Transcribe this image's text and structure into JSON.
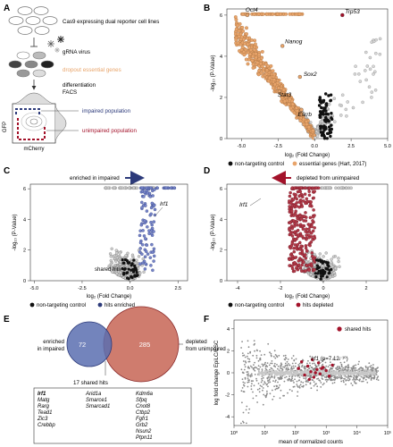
{
  "panels": {
    "A": {
      "letter": "A",
      "cell_lines": "Cas9 expressing dual reporter cell lines",
      "virus": "gRNA virus",
      "dropout": "dropout essential genes",
      "diff1": "differentiation",
      "diff2": "FACS",
      "impaired": "impaired population",
      "unimpaired": "unimpaired population",
      "ylab": "GFP",
      "xlab": "mCherry"
    },
    "B": {
      "letter": "B",
      "genes": [
        "Oct4",
        "Trp53",
        "Nanog",
        "Sox2",
        "Stat3",
        "Esrrb"
      ],
      "xticks": [
        "-5.0",
        "-2.5",
        "0.0",
        "2.5",
        "5.0"
      ],
      "yticks": [
        "0",
        "2",
        "4",
        "6"
      ],
      "ylabel": "-log₁₀ (P-Value)",
      "xlabel": "log₂ (Fold Change)",
      "legend": [
        "non-targeting control",
        "essential genes (Hart, 2017)"
      ]
    },
    "C": {
      "letter": "C",
      "annot": "enriched in impaired",
      "gene": "Irf1",
      "shared": "shared hits",
      "xticks": [
        "-5.0",
        "-2.5",
        "0.0",
        "2.5"
      ],
      "yticks": [
        "0",
        "2",
        "4",
        "6"
      ],
      "ylabel": "-log₁₀ (P-Value)",
      "xlabel": "log₂ (Fold Change)",
      "legend": [
        "non-targeting control",
        "hits enriched"
      ]
    },
    "D": {
      "letter": "D",
      "annot": "depleted from unimpaired",
      "gene": "Irf1",
      "xticks": [
        "-4",
        "-2",
        "0",
        "2"
      ],
      "yticks": [
        "0",
        "2",
        "4",
        "6"
      ],
      "ylabel": "-log₁₀ (P-Value)",
      "xlabel": "log₂ (Fold Change)",
      "legend": [
        "non-targeting control",
        "hits depleted"
      ]
    },
    "E": {
      "letter": "E",
      "left_label": [
        "enriched",
        "in impaired"
      ],
      "right_label": [
        "depleted",
        "from unimpaired"
      ],
      "left_count": "72",
      "right_count": "285",
      "shared_label": "17 shared hits",
      "genes_col1": [
        "Irf1",
        "Matg",
        "Rarg",
        "Tead1",
        "Zic3",
        "Crebbp"
      ],
      "genes_col2": [
        "Arid1a",
        "Smarce1",
        "Smarcad1"
      ],
      "genes_col3": [
        "Kdm6a",
        "Sfpq",
        "Cnot8",
        "Ctbp2",
        "Fgfr1",
        "Grb2",
        "Nsun2",
        "Ptpn11"
      ]
    },
    "F": {
      "letter": "F",
      "legend": "shared hits",
      "gene": "Irf1",
      "pval": "(p=7.12⁻¹⁰)",
      "ylabel": "log fold change EpiLC/ESC",
      "xlabel": "mean of normalized counts",
      "yticks": [
        "-4",
        "-2",
        "0",
        "2",
        "4"
      ],
      "xticks": [
        "10⁰",
        "10¹",
        "10²",
        "10³",
        "10⁴",
        "10⁵"
      ]
    }
  },
  "colors": {
    "grey": "#8c8c8c",
    "dark": "#111111",
    "orange": "#e8a46a",
    "navy": "#2c3a7a",
    "blue": "#6f7fc4",
    "red": "#b23a48",
    "crimson": "#a3122a"
  },
  "chart_data": [
    {
      "type": "scatter",
      "panel": "B",
      "xlabel": "log₂ (Fold Change)",
      "ylabel": "-log₁₀ (P-Value)",
      "xlim": [
        -6,
        5
      ],
      "ylim": [
        0,
        6.3
      ],
      "series": [
        {
          "name": "non-targeting control"
        },
        {
          "name": "essential genes (Hart, 2017)"
        }
      ],
      "labelled_points": [
        {
          "label": "Oct4",
          "x": -4.6,
          "y": 6.0
        },
        {
          "label": "Trp53",
          "x": 1.9,
          "y": 6.0
        },
        {
          "label": "Nanog",
          "x": -2.2,
          "y": 4.5
        },
        {
          "label": "Sox2",
          "x": -1.0,
          "y": 3.0
        },
        {
          "label": "Stat3",
          "x": -2.4,
          "y": 2.3
        },
        {
          "label": "Esrrb",
          "x": -0.9,
          "y": 1.4
        }
      ]
    },
    {
      "type": "scatter",
      "panel": "C",
      "xlabel": "log₂ (Fold Change)",
      "ylabel": "-log₁₀ (P-Value)",
      "xlim": [
        -5.2,
        3.0
      ],
      "ylim": [
        0,
        6.3
      ],
      "series": [
        {
          "name": "non-targeting control"
        },
        {
          "name": "hits enriched"
        }
      ],
      "labelled_points": [
        {
          "label": "Irf1",
          "x": 2.35,
          "y": 5.7
        }
      ]
    },
    {
      "type": "scatter",
      "panel": "D",
      "xlabel": "log₂ (Fold Change)",
      "ylabel": "-log₁₀ (P-Value)",
      "xlim": [
        -4.5,
        3.0
      ],
      "ylim": [
        0,
        6.3
      ],
      "series": [
        {
          "name": "non-targeting control"
        },
        {
          "name": "hits depleted"
        }
      ],
      "labelled_points": [
        {
          "label": "Irf1",
          "x": -1.5,
          "y": 4.6
        }
      ]
    },
    {
      "type": "scatter",
      "panel": "F",
      "xlabel": "mean of normalized counts",
      "ylabel": "log fold change EpiLC/ESC",
      "xscale": "log",
      "xlim": [
        1,
        100000
      ],
      "ylim": [
        -4.8,
        4.8
      ],
      "series": [
        {
          "name": "shared hits"
        }
      ],
      "labelled_points": [
        {
          "label": "Irf1",
          "x": 400,
          "y": 1.2
        }
      ]
    }
  ]
}
